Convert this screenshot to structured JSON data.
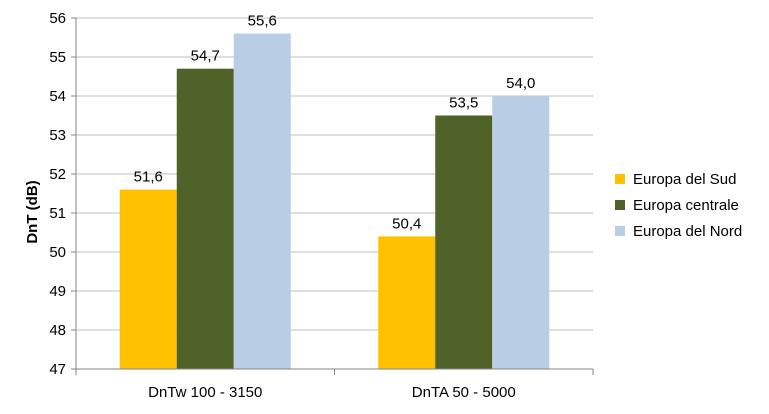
{
  "chart_data": {
    "type": "bar",
    "categories": [
      "DnTw 100 - 3150",
      "DnTA 50 - 5000"
    ],
    "series": [
      {
        "name": "Europa del Sud",
        "values": [
          51.6,
          50.4
        ],
        "labels": [
          "51,6",
          "50,4"
        ],
        "color": "#FFC000"
      },
      {
        "name": "Europa centrale",
        "values": [
          54.7,
          53.5
        ],
        "labels": [
          "54,7",
          "53,5"
        ],
        "color": "#4F6228"
      },
      {
        "name": "Europa del Nord",
        "values": [
          55.6,
          54.0
        ],
        "labels": [
          "55,6",
          "54,0"
        ],
        "color": "#B9CDE5"
      }
    ],
    "ylabel": "DnT (dB)",
    "ylim": [
      47,
      56
    ],
    "yticks": [
      "47",
      "48",
      "49",
      "50",
      "51",
      "52",
      "53",
      "54",
      "55",
      "56"
    ],
    "grid": true,
    "legend_position": "right"
  }
}
